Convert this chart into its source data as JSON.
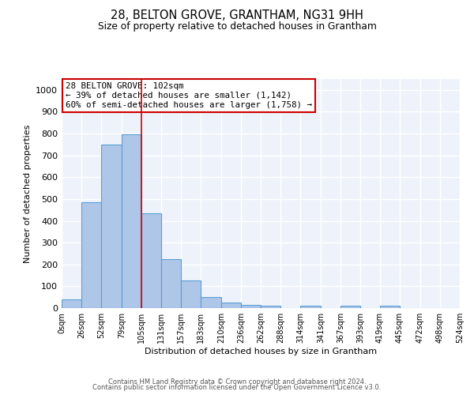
{
  "title": "28, BELTON GROVE, GRANTHAM, NG31 9HH",
  "subtitle": "Size of property relative to detached houses in Grantham",
  "xlabel": "Distribution of detached houses by size in Grantham",
  "ylabel": "Number of detached properties",
  "bar_color": "#aec6e8",
  "bar_edge_color": "#5a9fd4",
  "background_color": "#eef3fb",
  "grid_color": "#ffffff",
  "bin_edges": [
    0,
    26,
    52,
    79,
    105,
    131,
    157,
    183,
    210,
    236,
    262,
    288,
    314,
    341,
    367,
    393,
    419,
    445,
    472,
    498,
    524
  ],
  "bar_heights": [
    40,
    485,
    750,
    795,
    435,
    225,
    125,
    50,
    27,
    14,
    10,
    0,
    10,
    0,
    10,
    0,
    10,
    0,
    0,
    0
  ],
  "xtick_labels": [
    "0sqm",
    "26sqm",
    "52sqm",
    "79sqm",
    "105sqm",
    "131sqm",
    "157sqm",
    "183sqm",
    "210sqm",
    "236sqm",
    "262sqm",
    "288sqm",
    "314sqm",
    "341sqm",
    "367sqm",
    "393sqm",
    "419sqm",
    "445sqm",
    "472sqm",
    "498sqm",
    "524sqm"
  ],
  "ylim": [
    0,
    1050
  ],
  "yticks": [
    0,
    100,
    200,
    300,
    400,
    500,
    600,
    700,
    800,
    900,
    1000
  ],
  "red_line_x": 105,
  "annotation_text": "28 BELTON GROVE: 102sqm\n← 39% of detached houses are smaller (1,142)\n60% of semi-detached houses are larger (1,758) →",
  "annotation_box_color": "#ffffff",
  "annotation_box_edge_color": "#cc0000",
  "footer_text1": "Contains HM Land Registry data © Crown copyright and database right 2024.",
  "footer_text2": "Contains public sector information licensed under the Open Government Licence v3.0."
}
